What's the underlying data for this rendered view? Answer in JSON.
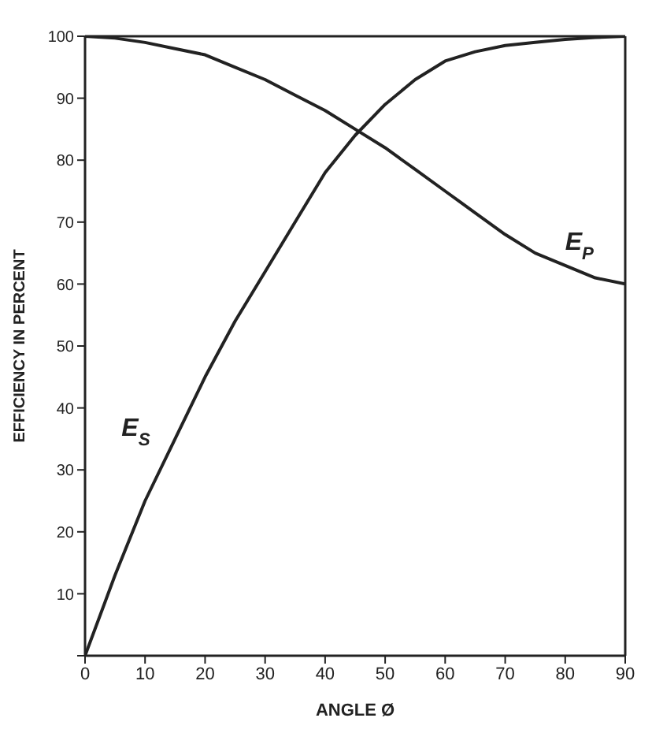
{
  "chart_data": {
    "type": "line",
    "xlabel": "ANGLE Ø",
    "ylabel": "EFFICIENCY IN PERCENT",
    "x": [
      0,
      5,
      10,
      15,
      20,
      25,
      30,
      35,
      40,
      45,
      50,
      55,
      60,
      65,
      70,
      75,
      80,
      85,
      90
    ],
    "series": [
      {
        "name": "E$_{S}$",
        "color": "#222222",
        "values": [
          0,
          13,
          25,
          35,
          45,
          54,
          62,
          70,
          78,
          84,
          89,
          93,
          96,
          97.5,
          98.5,
          99,
          99.5,
          99.8,
          100
        ]
      },
      {
        "name": "E$_{P}$",
        "color": "#222222",
        "values": [
          100,
          99.7,
          99,
          98,
          97,
          95,
          93,
          90.5,
          88,
          85,
          82,
          78.5,
          75,
          71.5,
          68,
          65,
          63,
          61,
          60
        ]
      }
    ],
    "xlim": [
      0,
      90
    ],
    "ylim": [
      0,
      100
    ],
    "xticks": [
      0,
      10,
      20,
      30,
      40,
      50,
      60,
      70,
      80,
      90
    ],
    "yticks": [
      {
        "value": 0,
        "label": null
      },
      10,
      20,
      30,
      40,
      50,
      60,
      70,
      80,
      90,
      100
    ],
    "grid": false,
    "legend": false,
    "marker": "none",
    "line_style": "solid"
  }
}
